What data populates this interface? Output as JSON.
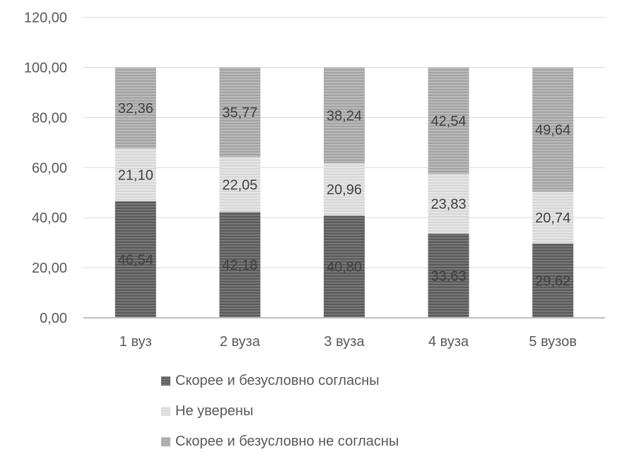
{
  "chart_data": {
    "type": "bar",
    "stacked": true,
    "categories": [
      "1 вуз",
      "2 вуза",
      "3 вуза",
      "4 вуза",
      "5 вузов"
    ],
    "series": [
      {
        "name": "Скорее и безусловно согласны",
        "values": [
          46.54,
          42.18,
          40.8,
          33.63,
          29.62
        ],
        "labels": [
          "46,54",
          "42,18",
          "40,80",
          "33,63",
          "29,62"
        ],
        "color": "#5a5a5a",
        "stripe": "#7e7e7e"
      },
      {
        "name": "Не уверены",
        "values": [
          21.1,
          22.05,
          20.96,
          23.83,
          20.74
        ],
        "labels": [
          "21,10",
          "22,05",
          "20,96",
          "23,83",
          "20,74"
        ],
        "color": "#d6d6d6",
        "stripe": "#eaeaea"
      },
      {
        "name": "Скорее и безусловно не согласны",
        "values": [
          32.36,
          35.77,
          38.24,
          42.54,
          49.64
        ],
        "labels": [
          "32,36",
          "35,77",
          "38,24",
          "42,54",
          "49,64"
        ],
        "color": "#a3a3a3",
        "stripe": "#c0c0c0"
      }
    ],
    "yticks": [
      "0,00",
      "20,00",
      "40,00",
      "60,00",
      "80,00",
      "100,00",
      "120,00"
    ],
    "ylim": [
      0,
      120
    ],
    "grid": true,
    "legend_position": "bottom",
    "title": "",
    "xlabel": "",
    "ylabel": ""
  }
}
